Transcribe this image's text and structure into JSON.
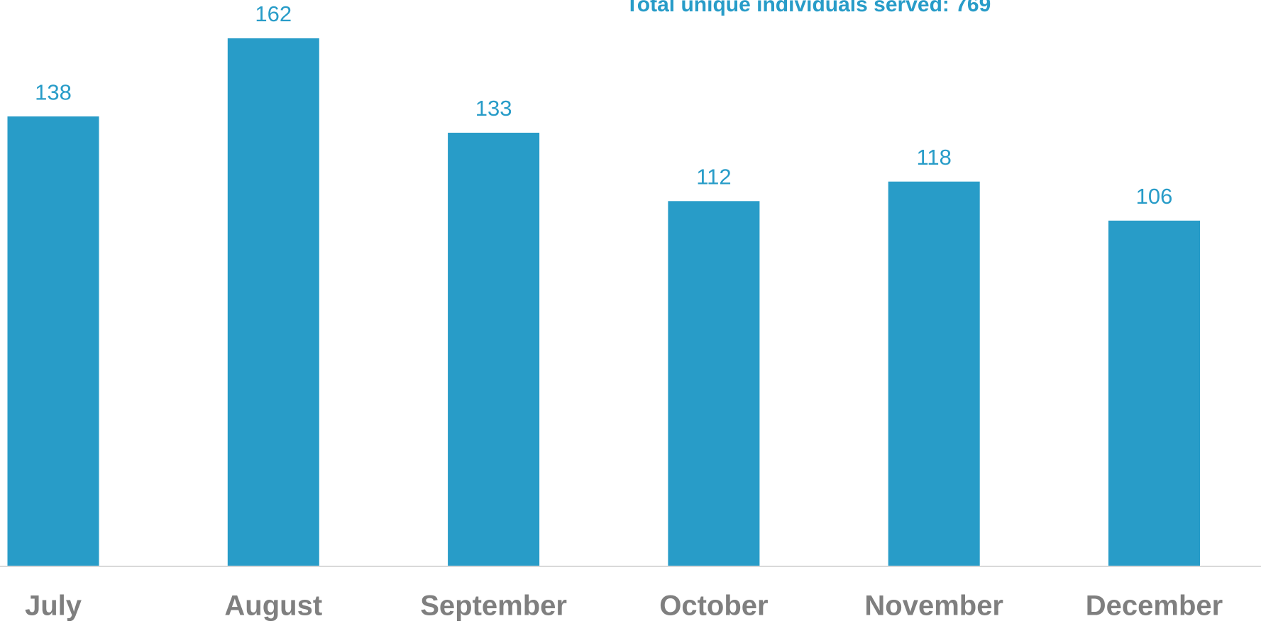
{
  "chart_data": {
    "type": "bar",
    "title": "Total unique individuals served: 769",
    "categories": [
      "July",
      "August",
      "September",
      "October",
      "November",
      "December"
    ],
    "values": [
      138,
      162,
      133,
      112,
      118,
      106
    ],
    "color": "#289cc8"
  }
}
